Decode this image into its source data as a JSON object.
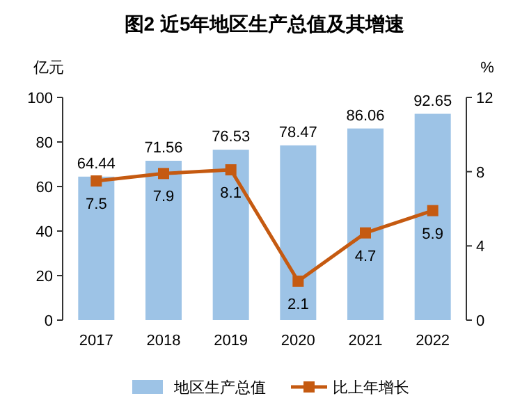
{
  "chart_data": {
    "type": "bar",
    "title": "图2  近5年地区生产总值及其增速",
    "ylabel": "亿元",
    "y2label": "%",
    "categories": [
      "2017",
      "2018",
      "2019",
      "2020",
      "2021",
      "2022"
    ],
    "series": [
      {
        "name": "地区生产总值",
        "color": "#9dc3e6",
        "values": [
          64.44,
          71.56,
          76.53,
          78.47,
          86.06,
          92.65
        ]
      },
      {
        "name": "比上年增长",
        "type": "line",
        "axis": "y2",
        "color": "#c55a11",
        "marker": "square",
        "values": [
          7.5,
          7.9,
          8.1,
          2.1,
          4.7,
          5.9
        ]
      }
    ],
    "ylim": [
      0,
      100
    ],
    "yticks": [
      0,
      20,
      40,
      60,
      80,
      100
    ],
    "y2lim": [
      0,
      12
    ],
    "y2ticks": [
      0,
      4,
      8,
      12
    ],
    "data_labels": true,
    "legend": "bottom",
    "grid": false
  }
}
